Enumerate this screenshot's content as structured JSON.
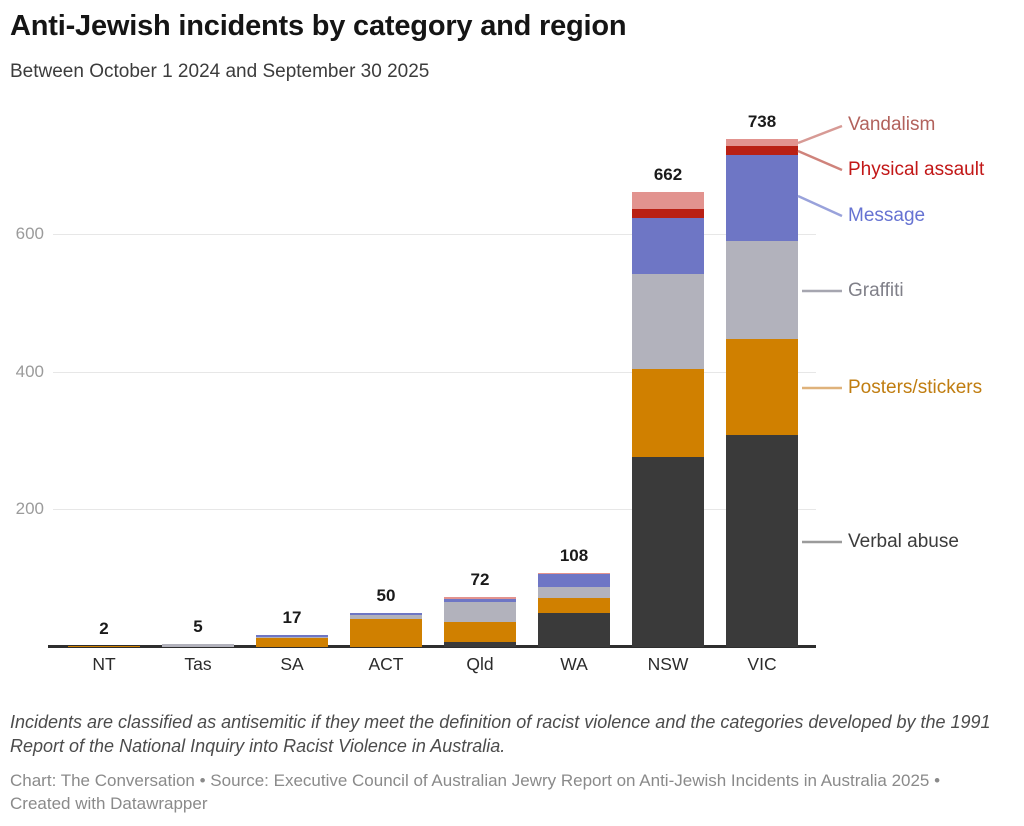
{
  "header": {
    "title": "Anti-Jewish incidents by category and region",
    "subtitle": "Between October 1 2024 and September 30 2025"
  },
  "chart_data": {
    "type": "bar",
    "stacked": true,
    "orientation": "vertical",
    "categories": [
      "NT",
      "Tas",
      "SA",
      "ACT",
      "Qld",
      "WA",
      "NSW",
      "VIC"
    ],
    "totals": [
      2,
      5,
      17,
      50,
      72,
      108,
      662,
      738
    ],
    "series": [
      {
        "name": "Verbal abuse",
        "color": "#3a3a3a",
        "label_color": "#3c3c3c",
        "values": [
          0,
          0,
          0,
          0,
          7,
          50,
          276,
          308
        ]
      },
      {
        "name": "Posters/stickers",
        "color": "#d08000",
        "label_color": "#c07d10",
        "values": [
          2,
          0,
          13,
          40,
          29,
          21,
          128,
          140
        ]
      },
      {
        "name": "Graffiti",
        "color": "#b2b2bc",
        "label_color": "#808089",
        "values": [
          0,
          5,
          1,
          6,
          30,
          16,
          138,
          142
        ]
      },
      {
        "name": "Message",
        "color": "#6e76c5",
        "label_color": "#6673d2",
        "values": [
          0,
          0,
          3,
          4,
          4,
          19,
          82,
          125
        ]
      },
      {
        "name": "Physical assault",
        "color": "#b92014",
        "label_color": "#c21717",
        "values": [
          0,
          0,
          0,
          0,
          0,
          0,
          12,
          13
        ]
      },
      {
        "name": "Vandalism",
        "color": "#e2938f",
        "label_color": "#b2625c",
        "values": [
          0,
          0,
          0,
          0,
          2,
          2,
          26,
          10
        ]
      }
    ],
    "xlabel": "",
    "ylabel": "",
    "y_ticks": [
      200,
      400,
      600
    ],
    "ylim": [
      0,
      760
    ],
    "grid": "horizontal",
    "legend_position": "right"
  },
  "footer": {
    "note": "Incidents are classified as antisemitic if they meet the definition of racist violence and the categories developed by the 1991 Report of the National Inquiry into Racist Violence in Australia.",
    "attribution": "Chart: The Conversation • Source: Executive Council of Australian Jewry Report on Anti-Jewish Incidents in Australia 2025 • Created with Datawrapper"
  }
}
